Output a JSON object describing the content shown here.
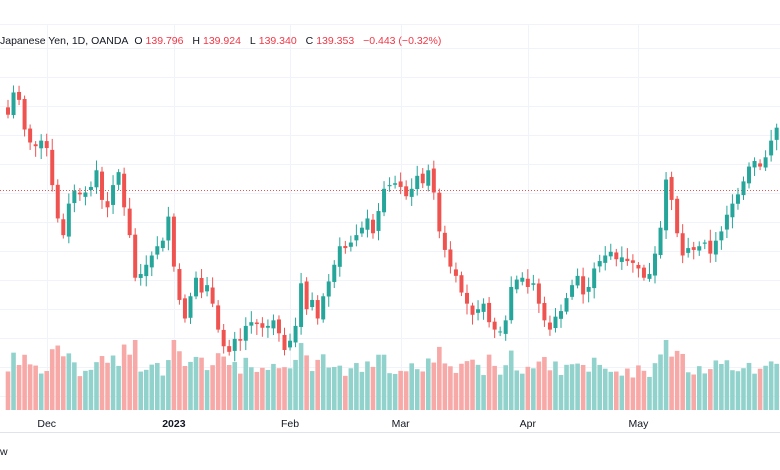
{
  "legend": {
    "symbol_text": "Japanese Yen, 1D, OANDA",
    "o_label": "O",
    "o_value": "139.796",
    "h_label": "H",
    "h_value": "139.924",
    "l_label": "L",
    "l_value": "139.340",
    "c_label": "C",
    "c_value": "139.353",
    "change": "−0.443 (−0.32%)"
  },
  "bottom_label": "w",
  "colors": {
    "up": "#26a69a",
    "down": "#ef5350",
    "vol_up": "#92d2cc",
    "vol_down": "#f7a9a7",
    "ref_line": "#ef5350"
  },
  "chart_data": {
    "type": "candlestick",
    "title": "Japanese Yen, 1D, OANDA",
    "x_ticks": [
      {
        "label": "Dec",
        "index": 7,
        "bold": false
      },
      {
        "label": "2023",
        "index": 30,
        "bold": true
      },
      {
        "label": "Feb",
        "index": 51,
        "bold": false
      },
      {
        "label": "Mar",
        "index": 71,
        "bold": false
      },
      {
        "label": "Apr",
        "index": 94,
        "bold": false
      },
      {
        "label": "May",
        "index": 114,
        "bold": false
      }
    ],
    "ohlc_closes": [
      143.4,
      144.6,
      144.2,
      142.6,
      141.9,
      141.7,
      142.0,
      141.6,
      139.6,
      137.8,
      136.9,
      138.6,
      139.3,
      139.1,
      139.2,
      139.5,
      140.4,
      138.8,
      138.4,
      139.6,
      140.3,
      138.4,
      136.9,
      134.6,
      134.8,
      135.3,
      135.8,
      136.3,
      136.6,
      137.9,
      135.2,
      133.4,
      132.4,
      133.6,
      134.6,
      133.8,
      134.2,
      133.2,
      131.8,
      130.9,
      130.6,
      131.3,
      131.2,
      132.0,
      132.2,
      132.1,
      131.9,
      132.0,
      132.3,
      131.6,
      130.7,
      131.2,
      132.0,
      134.3,
      132.9,
      133.4,
      132.4,
      133.6,
      134.4,
      135.3,
      136.3,
      136.2,
      136.5,
      136.9,
      137.3,
      137.8,
      137.0,
      138.2,
      139.4,
      139.6,
      139.7,
      139.5,
      139.0,
      139.4,
      140.1,
      139.7,
      140.4,
      139.2,
      137.1,
      136.1,
      135.2,
      134.7,
      133.8,
      133.2,
      132.6,
      132.9,
      133.2,
      132.2,
      131.8,
      131.7,
      132.3,
      134.1,
      134.5,
      134.6,
      134.1,
      134.3,
      133.2,
      132.3,
      131.8,
      132.5,
      132.8,
      133.5,
      134.2,
      134.7,
      133.7,
      134.1,
      135.1,
      135.5,
      135.8,
      136.0,
      135.6,
      135.7,
      135.5,
      135.4,
      135.1,
      134.6,
      134.8,
      135.9,
      137.3,
      139.9,
      138.8,
      137.0,
      135.8,
      136.2,
      136.1,
      136.3,
      136.5,
      135.9,
      136.6,
      137.1,
      138.0,
      138.6,
      139.1,
      139.8,
      140.6,
      140.9,
      140.6,
      141.1,
      142.0,
      142.7
    ]
  }
}
